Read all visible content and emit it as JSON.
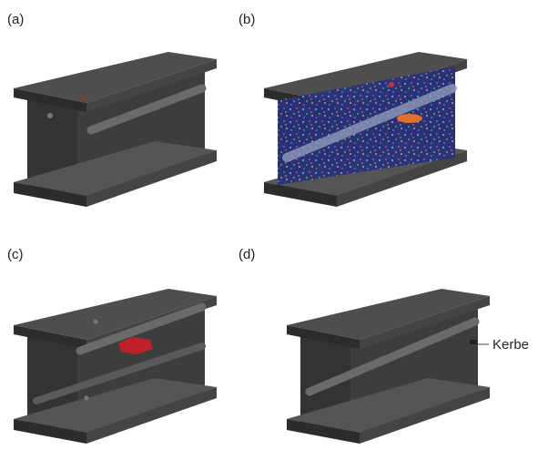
{
  "panels": [
    {
      "label": "(a)"
    },
    {
      "label": "(b)"
    },
    {
      "label": "(c)"
    },
    {
      "label": "(d)"
    }
  ],
  "annotation": "Kerbe"
}
